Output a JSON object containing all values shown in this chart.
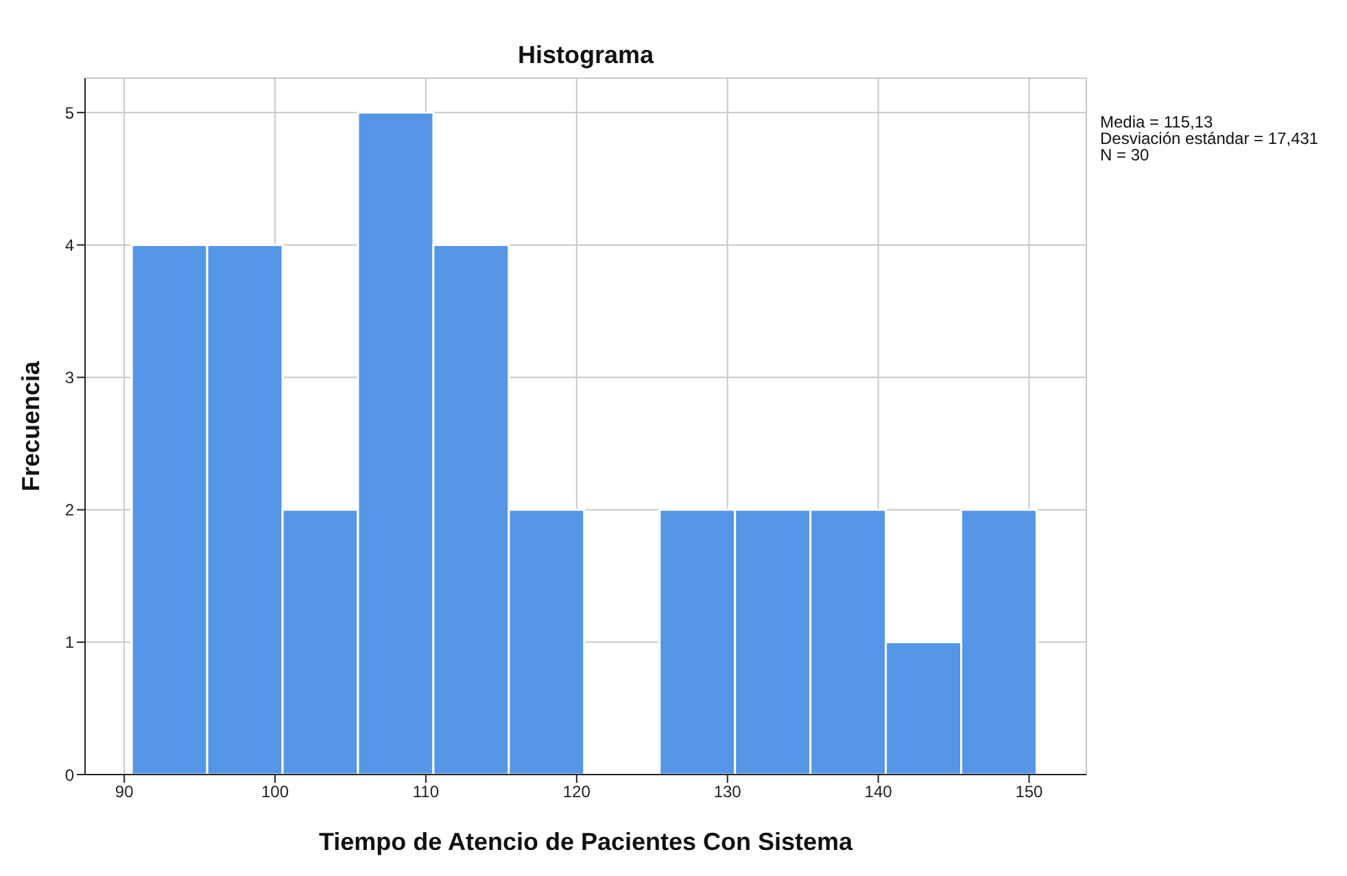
{
  "chart_data": {
    "type": "histogram",
    "title": "Histograma",
    "xlabel": "Tiempo de Atencio de Pacientes Con Sistema",
    "ylabel": "Frecuencia",
    "bins": [
      90.5,
      95.5,
      100.5,
      105.5,
      110.5,
      115.5,
      120.5,
      125.5,
      130.5,
      135.5,
      140.5,
      145.5,
      150.5
    ],
    "values": [
      4,
      4,
      2,
      5,
      4,
      2,
      0,
      2,
      2,
      2,
      1,
      2
    ],
    "color": "#5596e6",
    "xlim": [
      87.4,
      153.8
    ],
    "xticks": [
      90,
      100,
      110,
      120,
      130,
      140,
      150
    ],
    "ylim": [
      0,
      5.26
    ],
    "yticks": [
      0,
      1,
      2,
      3,
      4,
      5
    ],
    "grid": true,
    "annotations": [
      "Media = 115,13",
      "Desviación estándar = 17,431",
      "N = 30"
    ]
  }
}
